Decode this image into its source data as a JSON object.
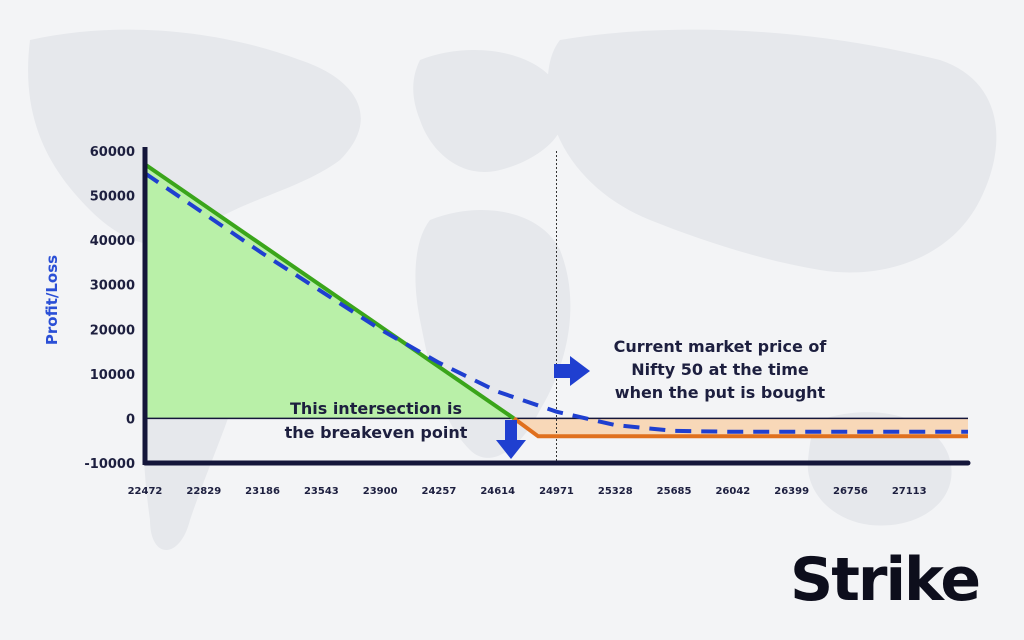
{
  "chart_data": {
    "type": "line",
    "title": "",
    "xlabel": "",
    "ylabel": "Profit/Loss",
    "ylim": [
      -10000,
      60000
    ],
    "yticks": [
      60000,
      50000,
      40000,
      30000,
      20000,
      10000,
      0,
      -10000
    ],
    "xticks": [
      22472,
      22829,
      23186,
      23543,
      23900,
      24257,
      24614,
      24971,
      25328,
      25685,
      26042,
      26399,
      26756,
      27113
    ],
    "xlim": [
      22472,
      27470
    ],
    "series": [
      {
        "style": "solid-green",
        "x": [
          22472,
          24712
        ],
        "y": [
          57000,
          0
        ],
        "fill": "profit-green"
      },
      {
        "style": "solid-orange",
        "x": [
          24712,
          24860,
          27470
        ],
        "y": [
          0,
          -4000,
          -4000
        ],
        "fill": "loss-orange"
      },
      {
        "style": "dashed-blue",
        "x": [
          22472,
          22829,
          23186,
          23543,
          23900,
          24257,
          24614,
          24971,
          25328,
          25685,
          26042,
          26399,
          26756,
          27113,
          27470
        ],
        "y": [
          55000,
          46000,
          37000,
          28500,
          20000,
          12500,
          6000,
          1500,
          -1500,
          -2800,
          -3000,
          -3000,
          -3000,
          -3000,
          -3000
        ]
      }
    ],
    "current_price_x": 24971,
    "colors": {
      "green_line": "#3aa51a",
      "green_fill": "#b9f0a8",
      "orange_line": "#e0701e",
      "orange_fill": "#f8d8b8",
      "dashed_line": "#1f3fd0",
      "axis": "#14163a",
      "arrow": "#1f3fd0"
    },
    "annotations": {
      "current_price_line1": "Current market price of",
      "current_price_line2": "Nifty 50 at the time",
      "current_price_line3": "when the put is bought",
      "breakeven_line1": "This intersection is",
      "breakeven_line2": "the breakeven point"
    }
  },
  "brand": {
    "logo_text": "Strike"
  }
}
